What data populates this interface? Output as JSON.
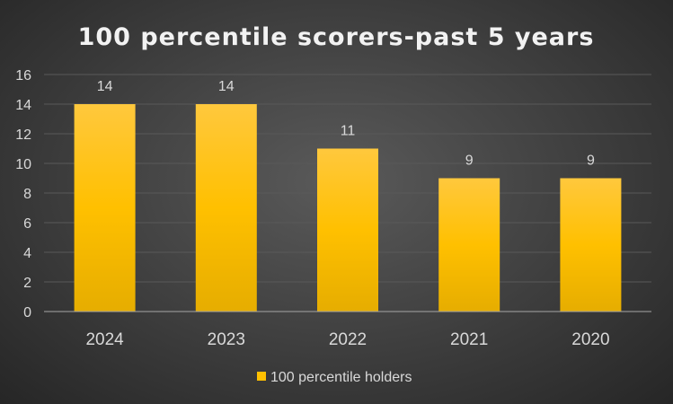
{
  "chart_data": {
    "type": "bar",
    "title": "100 percentile scorers-past 5 years",
    "categories": [
      "2024",
      "2023",
      "2022",
      "2021",
      "2020"
    ],
    "series": [
      {
        "name": "100 percentile holders",
        "values": [
          14,
          14,
          11,
          9,
          9
        ]
      }
    ],
    "ylim": [
      0,
      16
    ],
    "yticks": [
      0,
      2,
      4,
      6,
      8,
      10,
      12,
      14,
      16
    ],
    "grid": true,
    "legend": "bottom",
    "data_labels": true,
    "colors": {
      "bar_top": "#ffc83d",
      "bar_mid": "#ffc000",
      "bar_bottom": "#e6ad00",
      "grid": "#595959",
      "axis": "#a6a6a6"
    }
  }
}
